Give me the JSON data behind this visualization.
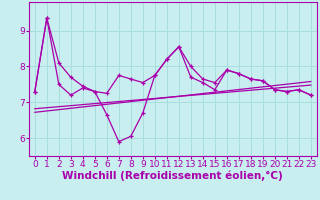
{
  "title": "",
  "xlabel": "Windchill (Refroidissement éolien,°C)",
  "ylabel": "",
  "background_color": "#c8eef0",
  "grid_color": "#aadddd",
  "line_color": "#aa00aa",
  "x_ticks": [
    0,
    1,
    2,
    3,
    4,
    5,
    6,
    7,
    8,
    9,
    10,
    11,
    12,
    13,
    14,
    15,
    16,
    17,
    18,
    19,
    20,
    21,
    22,
    23
  ],
  "y_ticks": [
    6,
    7,
    8,
    9
  ],
  "ylim": [
    5.5,
    9.8
  ],
  "xlim": [
    -0.5,
    23.5
  ],
  "series1": [
    7.3,
    9.35,
    7.5,
    7.2,
    7.4,
    7.3,
    6.65,
    5.9,
    6.05,
    6.7,
    7.75,
    8.2,
    8.55,
    7.7,
    7.55,
    7.35,
    7.9,
    7.8,
    7.65,
    7.6,
    7.35,
    7.3,
    7.35,
    7.2
  ],
  "series2": [
    7.3,
    9.35,
    8.1,
    7.7,
    7.45,
    7.3,
    7.25,
    7.75,
    7.65,
    7.55,
    7.75,
    8.2,
    8.55,
    8.0,
    7.65,
    7.55,
    7.9,
    7.8,
    7.65,
    7.6,
    7.35,
    7.3,
    7.35,
    7.2
  ],
  "reg_line1": [
    6.72,
    7.58
  ],
  "reg_line2": [
    6.82,
    7.48
  ],
  "tick_fontsize": 6.5,
  "label_fontsize": 7.5
}
